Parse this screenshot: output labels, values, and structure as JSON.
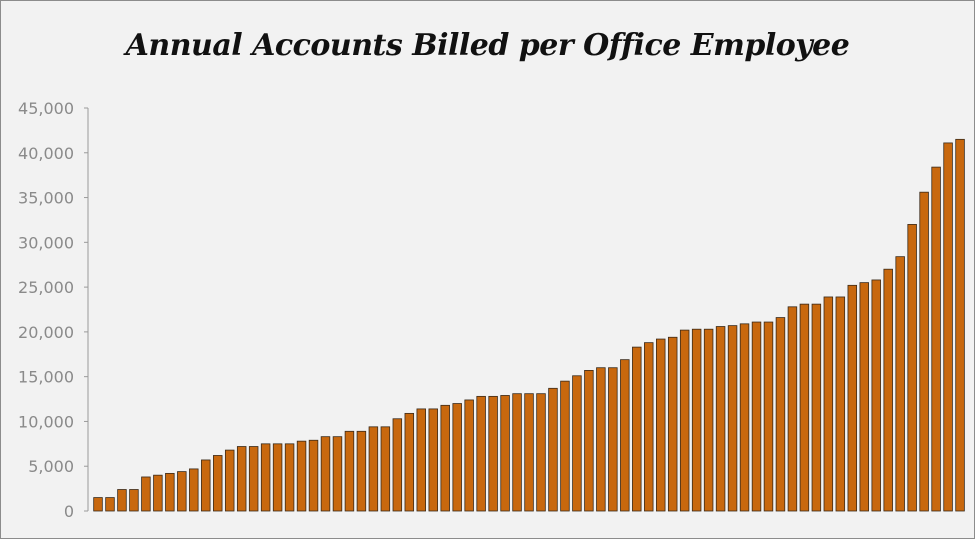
{
  "chart_data": {
    "type": "bar",
    "title": "Annual Accounts Billed per Office Employee",
    "xlabel": "",
    "ylabel": "",
    "ylim": [
      0,
      45000
    ],
    "yticks": [
      {
        "value": 0,
        "label": "0"
      },
      {
        "value": 5000,
        "label": "5,000"
      },
      {
        "value": 10000,
        "label": "10,000"
      },
      {
        "value": 15000,
        "label": "15,000"
      },
      {
        "value": 20000,
        "label": "20,000"
      },
      {
        "value": 25000,
        "label": "25,000"
      },
      {
        "value": 30000,
        "label": "30,000"
      },
      {
        "value": 35000,
        "label": "35,000"
      },
      {
        "value": 40000,
        "label": "40,000"
      },
      {
        "value": 45000,
        "label": "45,000"
      }
    ],
    "grid": false,
    "legend": "none",
    "bar_color": "#c8680e",
    "bar_stroke": "#3a2a1a",
    "values": [
      1500,
      1500,
      2400,
      2400,
      3800,
      4000,
      4200,
      4400,
      4700,
      5700,
      6200,
      6800,
      7200,
      7200,
      7500,
      7500,
      7500,
      7800,
      7900,
      8300,
      8300,
      8900,
      8900,
      9400,
      9400,
      10300,
      10900,
      11400,
      11400,
      11800,
      12000,
      12400,
      12800,
      12800,
      12900,
      13100,
      13100,
      13100,
      13700,
      14500,
      15100,
      15700,
      16000,
      16000,
      16900,
      18300,
      18800,
      19200,
      19400,
      20200,
      20300,
      20300,
      20600,
      20700,
      20900,
      21100,
      21100,
      21600,
      22800,
      23100,
      23100,
      23900,
      23900,
      25200,
      25500,
      25800,
      27000,
      28400,
      32000,
      35600,
      38400,
      41100,
      41500
    ]
  }
}
